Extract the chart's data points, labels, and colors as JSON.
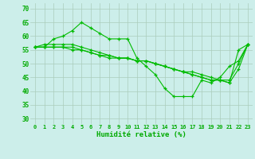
{
  "bg_color": "#cceeea",
  "grid_color": "#aaccbb",
  "line_color": "#00bb00",
  "marker_color": "#00bb00",
  "xlabel": "Humidité relative (%)",
  "xlabel_color": "#00aa00",
  "tick_color": "#00aa00",
  "ylim": [
    28,
    72
  ],
  "yticks": [
    30,
    35,
    40,
    45,
    50,
    55,
    60,
    65,
    70
  ],
  "xlim": [
    -0.5,
    23.5
  ],
  "xticks": [
    0,
    1,
    2,
    3,
    4,
    5,
    6,
    7,
    8,
    9,
    10,
    11,
    12,
    13,
    14,
    15,
    16,
    17,
    18,
    19,
    20,
    21,
    22,
    23
  ],
  "series": [
    [
      56,
      56,
      59,
      60,
      62,
      65,
      63,
      61,
      59,
      59,
      59,
      52,
      49,
      46,
      41,
      38,
      38,
      38,
      44,
      43,
      45,
      49,
      51,
      57
    ],
    [
      56,
      57,
      57,
      57,
      57,
      56,
      55,
      54,
      53,
      52,
      52,
      51,
      51,
      50,
      49,
      48,
      47,
      46,
      45,
      44,
      44,
      43,
      55,
      57
    ],
    [
      56,
      56,
      56,
      56,
      56,
      55,
      54,
      53,
      53,
      52,
      52,
      51,
      51,
      50,
      49,
      48,
      47,
      47,
      46,
      45,
      44,
      44,
      50,
      57
    ],
    [
      56,
      56,
      56,
      56,
      55,
      55,
      54,
      53,
      52,
      52,
      52,
      51,
      51,
      50,
      49,
      48,
      47,
      46,
      45,
      44,
      44,
      43,
      48,
      57
    ]
  ]
}
